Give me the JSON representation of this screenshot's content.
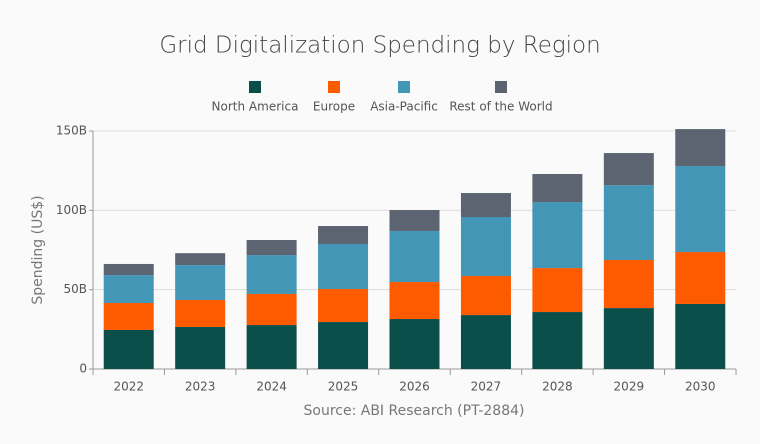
{
  "chart_data": {
    "type": "stacked-bar",
    "title": "Grid Digitalization Spending by Region",
    "y_label": "Spending (US$)",
    "source": "Source: ABI Research (PT-2884)",
    "categories": [
      "2022",
      "2023",
      "2024",
      "2025",
      "2026",
      "2027",
      "2028",
      "2029",
      "2030"
    ],
    "series": [
      {
        "name": "North America",
        "color": "#0b4f4a",
        "values": [
          24.6,
          26.5,
          27.7,
          29.6,
          31.5,
          34.0,
          35.9,
          38.4,
          41.0
        ]
      },
      {
        "name": "Europe",
        "color": "#fe5a00",
        "values": [
          17.0,
          17.0,
          19.6,
          20.8,
          23.3,
          24.6,
          27.7,
          30.3,
          32.7
        ]
      },
      {
        "name": "Asia-Pacific",
        "color": "#4396b6",
        "values": [
          17.6,
          22.0,
          24.5,
          28.4,
          32.2,
          37.2,
          41.6,
          47.2,
          54.2
        ]
      },
      {
        "name": "Rest of the World",
        "color": "#5b6470",
        "values": [
          7.0,
          7.5,
          9.5,
          11.3,
          13.2,
          15.1,
          17.7,
          20.2,
          23.3
        ]
      }
    ],
    "ylim": [
      0,
      150
    ],
    "yticks": [
      0,
      {
        "value": 50,
        "label": "50B"
      },
      {
        "value": 100,
        "label": "100B"
      },
      {
        "value": 150,
        "label": "150B"
      }
    ],
    "grid": true
  }
}
